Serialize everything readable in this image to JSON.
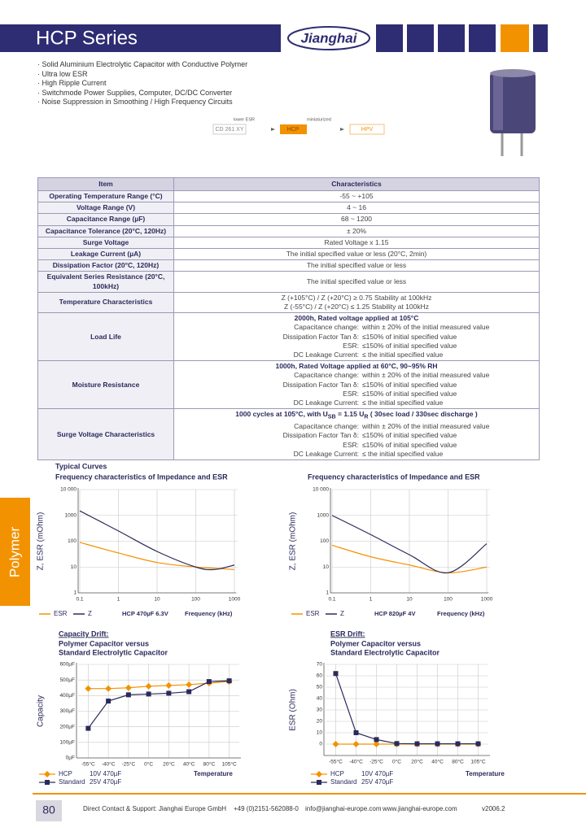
{
  "header": {
    "title": "HCP Series",
    "logo": "Jianghai"
  },
  "features": [
    "Solid Aluminium Electrolytic Capacitor with Conductive Polymer",
    "Ultra low ESR",
    "High Ripple Current",
    "Switchmode Power Supplies, Computer, DC/DC Converter",
    "Noise Suppression in Smoothing / High Frequency Circuits"
  ],
  "flow": {
    "steps": [
      "CD 261 XY",
      "HCP",
      "HPV"
    ],
    "labels": [
      "lower ESR",
      "miniaturized"
    ]
  },
  "table": {
    "header": [
      "Item",
      "Characteristics"
    ],
    "rows": [
      {
        "item": "Operating Temperature Range (°C)",
        "value": "-55 ~ +105"
      },
      {
        "item": "Voltage Range (V)",
        "value": "4 ~ 16"
      },
      {
        "item": "Capacitance Range (µF)",
        "value": "68 ~ 1200"
      },
      {
        "item": "Capacitance Tolerance (20°C, 120Hz)",
        "value": "± 20%"
      },
      {
        "item": "Surge Voltage",
        "value": "Rated Voltage x 1.15"
      },
      {
        "item": "Leakage Current (µA)",
        "value": "The initial specified value or less (20°C, 2min)"
      },
      {
        "item": "Dissipation Factor (20°C, 120Hz)",
        "value": "The initial specified value or less"
      },
      {
        "item": "Equivalent Series Resistance (20°C, 100kHz)",
        "value": "The initial specified value or less"
      },
      {
        "item": "Temperature Characteristics",
        "lines": [
          "Z (+105°C) / Z (+20°C) ≥ 0.75  Stability at 100kHz",
          "Z (-55°C) / Z (+20°C) ≤ 1.25  Stability at 100kHz"
        ]
      },
      {
        "item": "Load Life",
        "heading": [
          "2000h, Rated voltage applied at 105°C"
        ],
        "conditions": [
          [
            "Capacitance change:",
            "within ± 20% of the initial measured value"
          ],
          [
            "Dissipation Factor Tan δ:",
            "≤150% of initial specified value"
          ],
          [
            "ESR:",
            "≤150% of initial specified value"
          ],
          [
            "DC Leakage Current:",
            "≤ the initial specified value"
          ]
        ]
      },
      {
        "item": "Moisture Resistance",
        "heading": [
          "1000h, Rated Voltage applied at 60°C, 90~95% RH"
        ],
        "conditions": [
          [
            "Capacitance change:",
            "within ± 20% of the initial measured value"
          ],
          [
            "Dissipation Factor Tan δ:",
            "≤150% of initial specified value"
          ],
          [
            "ESR:",
            "≤150% of initial specified value"
          ],
          [
            "DC Leakage Current:",
            "≤ the initial specified value"
          ]
        ]
      },
      {
        "item": "Surge Voltage Characteristics",
        "heading": [
          "1000 cycles at 105°C, with U",
          "SB",
          " = 1.15 U",
          "R",
          " ( 30sec load / 330sec discharge )"
        ],
        "conditions": [
          [
            "Capacitance change:",
            "within ± 20% of the initial measured value"
          ],
          [
            "Dissipation Factor Tan δ:",
            "≤150% of initial specified value"
          ],
          [
            "ESR:",
            "≤150% of initial specified value"
          ],
          [
            "DC Leakage Current:",
            "≤ the initial specified value"
          ]
        ]
      }
    ]
  },
  "side_tab": "Polymer",
  "chart_data": [
    {
      "type": "line",
      "supertitle": "Typical Curves",
      "title": "Frequency characteristics of Impedance and ESR",
      "note": "HCP 470µF 6.3V",
      "xlabel": "Frequency (kHz)",
      "ylabel": "Z, ESR (mOhm)",
      "xlog": true,
      "ylog": true,
      "smooth": true,
      "grid": true,
      "x": [
        0.1,
        1,
        10,
        100,
        300,
        1000
      ],
      "xlim": [
        0.1,
        1000
      ],
      "xticks": [
        0.1,
        1,
        10,
        100,
        1000
      ],
      "ylim": [
        1,
        10000
      ],
      "yticks": [
        1,
        10,
        100,
        1000,
        {
          "value": 10000,
          "label": "10 000"
        }
      ],
      "series": [
        {
          "name": "ESR",
          "color": "#f39200",
          "values": [
            90,
            35,
            15,
            10,
            9,
            8
          ]
        },
        {
          "name": "Z",
          "color": "#2b2a5c",
          "values": [
            1500,
            250,
            40,
            10,
            8,
            12
          ]
        }
      ]
    },
    {
      "type": "line",
      "title": "Frequency characteristics of Impedance and ESR",
      "note": "HCP 820µF 4V",
      "xlabel": "Frequency (kHz)",
      "ylabel": "Z, ESR (mOhm)",
      "xlog": true,
      "ylog": true,
      "smooth": true,
      "grid": true,
      "x": [
        0.1,
        1,
        10,
        100,
        1000
      ],
      "xlim": [
        0.1,
        1000
      ],
      "xticks": [
        0.1,
        1,
        10,
        100,
        1000
      ],
      "ylim": [
        1,
        10000
      ],
      "yticks": [
        1,
        10,
        100,
        1000,
        {
          "value": 10000,
          "label": "10 000"
        }
      ],
      "series": [
        {
          "name": "ESR",
          "color": "#f39200",
          "values": [
            70,
            25,
            12,
            6,
            10
          ]
        },
        {
          "name": "Z",
          "color": "#2b2a5c",
          "values": [
            1000,
            180,
            30,
            6,
            80
          ]
        }
      ]
    },
    {
      "type": "line",
      "title": "Capacity Drift:",
      "subtitle": [
        "Polymer Capacitor versus",
        "Standard Electrolytic Capacitor"
      ],
      "xlabel": "Temperature",
      "ylabel": "Capacity",
      "grid": true,
      "categories": [
        "-55°C",
        "-40°C",
        "-25°C",
        "0°C",
        "20°C",
        "40°C",
        "80°C",
        "105°C"
      ],
      "ylim": [
        0,
        600
      ],
      "yticks": [
        {
          "value": 0,
          "label": "0µF"
        },
        {
          "value": 100,
          "label": "100µF"
        },
        {
          "value": 200,
          "label": "200µF"
        },
        {
          "value": 300,
          "label": "300µF"
        },
        {
          "value": 400,
          "label": "400µF"
        },
        {
          "value": 500,
          "label": "500µF"
        },
        {
          "value": 600,
          "label": "600µF"
        }
      ],
      "series": [
        {
          "name": "HCP",
          "spec": "10V 470µF",
          "color": "#f39200",
          "marker": "diamond",
          "values": [
            445,
            445,
            450,
            460,
            465,
            470,
            480,
            490
          ]
        },
        {
          "name": "Standard",
          "spec": "25V 470µF",
          "color": "#2b2a5c",
          "marker": "square",
          "values": [
            190,
            365,
            405,
            410,
            415,
            425,
            490,
            495
          ]
        }
      ]
    },
    {
      "type": "line",
      "title": "ESR Drift:",
      "subtitle": [
        "Polymer Capacitor versus",
        "Standard Electrolytic Capacitor"
      ],
      "xlabel": "Temperature",
      "ylabel": "ESR (Ohm)",
      "grid": true,
      "categories": [
        "-55°C",
        "-40°C",
        "-25°C",
        "0°C",
        "20°C",
        "40°C",
        "80°C",
        "105°C"
      ],
      "ylim": [
        -10,
        70
      ],
      "yticks": [
        0,
        10,
        20,
        30,
        40,
        50,
        60,
        70
      ],
      "series": [
        {
          "name": "HCP",
          "spec": "10V 470µF",
          "color": "#f39200",
          "marker": "diamond",
          "values": [
            0,
            0,
            0,
            0,
            0,
            0,
            0,
            0
          ]
        },
        {
          "name": "Standard",
          "spec": "25V 470µF",
          "color": "#2b2a5c",
          "marker": "square",
          "values": [
            62,
            10,
            4,
            0.5,
            0.3,
            0.3,
            0.3,
            0.3
          ]
        }
      ]
    }
  ],
  "footer": {
    "page": "80",
    "contact": "Direct Contact & Support: Jianghai Europe GmbH",
    "phone": "+49 (0)2151-562088-0",
    "email": "info@jianghai-europe.com",
    "web": "www.jianghai-europe.com",
    "version": "v2006.2"
  }
}
